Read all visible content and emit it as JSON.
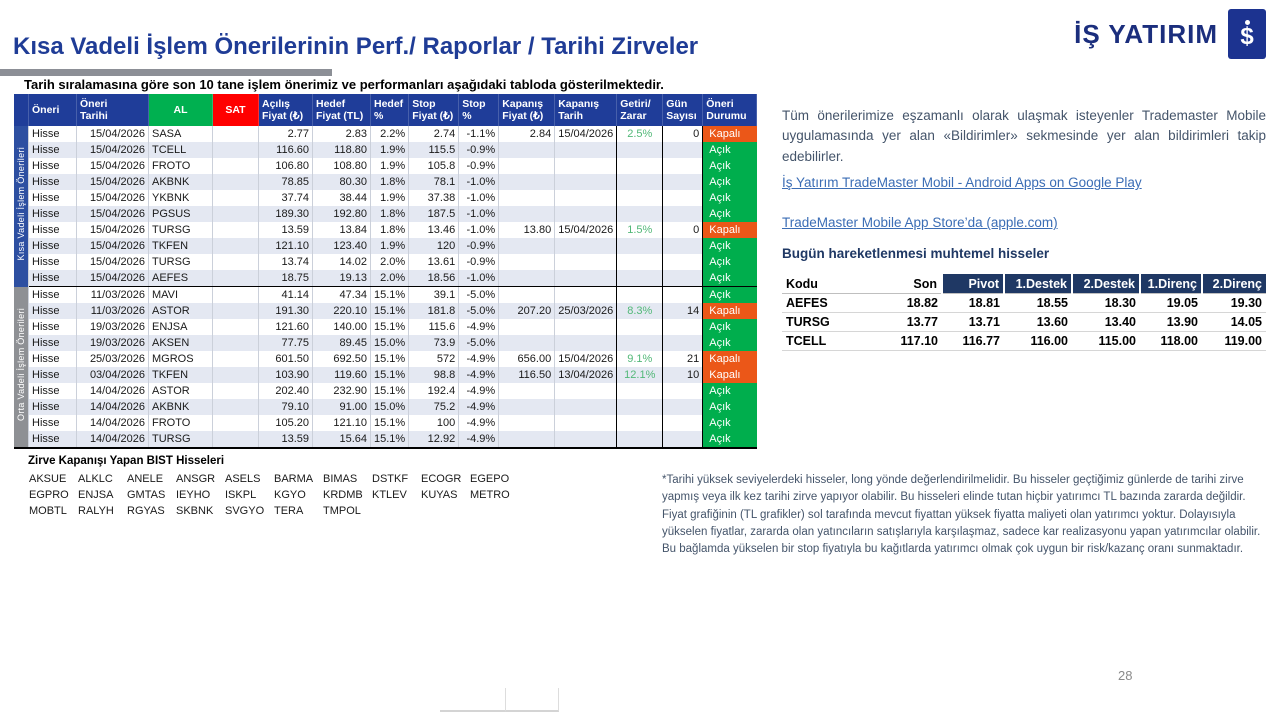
{
  "page": {
    "title": "Kısa Vadeli İşlem Önerilerinin Perf./ Raporlar / Tarihi Zirveler",
    "subtitle": "Tarih sıralamasına göre son 10 tane işlem önerimiz ve performanları aşağıdaki tabloda gösterilmektedir.",
    "page_number": "28"
  },
  "logo": {
    "brand": "İŞ YATIRIM",
    "glyph": "$"
  },
  "colors": {
    "title-blue": "#1F3C96",
    "header-blue": "#1F3D99",
    "sidebar-blue": "#2D4FA1",
    "sidebar-gray": "#8E9094",
    "al-green": "#00B050",
    "sat-red": "#FF0000",
    "open-green": "#00AE4D",
    "closed-orange": "#EB5718",
    "gain-green": "#52B878",
    "row-alt": "#E4E8F2",
    "navy": "#1F3864",
    "link-blue": "#3B6DB5",
    "body-text": "#44546A",
    "brand-navy": "#1B2E7D"
  },
  "main_table": {
    "headers": [
      {
        "l1": "Öneri",
        "l2": ""
      },
      {
        "l1": "Öneri",
        "l2": "Tarihi"
      },
      {
        "l1": "AL",
        "l2": ""
      },
      {
        "l1": "SAT",
        "l2": ""
      },
      {
        "l1": "Açılış",
        "l2": "Fiyat (₺)"
      },
      {
        "l1": "Hedef",
        "l2": "Fiyat (TL)"
      },
      {
        "l1": "Hedef",
        "l2": "%"
      },
      {
        "l1": "Stop",
        "l2": "Fiyat (₺)"
      },
      {
        "l1": "Stop",
        "l2": "%"
      },
      {
        "l1": "Kapanış",
        "l2": "Fiyat (₺)"
      },
      {
        "l1": "Kapanış",
        "l2": "Tarih"
      },
      {
        "l1": "Getiri/",
        "l2": "Zarar"
      },
      {
        "l1": "Gün",
        "l2": "Sayısı"
      },
      {
        "l1": "Öneri",
        "l2": "Durumu"
      }
    ],
    "groups": [
      {
        "label": "Kısa Vadeli İşlem Önerileri",
        "rows": [
          [
            "Hisse",
            "15/04/2026",
            "SASA",
            "",
            "2.77",
            "2.83",
            "2.2%",
            "2.74",
            "-1.1%",
            "2.84",
            "15/04/2026",
            "2.5%",
            "0",
            "Kapalı"
          ],
          [
            "Hisse",
            "15/04/2026",
            "TCELL",
            "",
            "116.60",
            "118.80",
            "1.9%",
            "115.5",
            "-0.9%",
            "",
            "",
            "",
            "",
            "Açık"
          ],
          [
            "Hisse",
            "15/04/2026",
            "FROTO",
            "",
            "106.80",
            "108.80",
            "1.9%",
            "105.8",
            "-0.9%",
            "",
            "",
            "",
            "",
            "Açık"
          ],
          [
            "Hisse",
            "15/04/2026",
            "AKBNK",
            "",
            "78.85",
            "80.30",
            "1.8%",
            "78.1",
            "-1.0%",
            "",
            "",
            "",
            "",
            "Açık"
          ],
          [
            "Hisse",
            "15/04/2026",
            "YKBNK",
            "",
            "37.74",
            "38.44",
            "1.9%",
            "37.38",
            "-1.0%",
            "",
            "",
            "",
            "",
            "Açık"
          ],
          [
            "Hisse",
            "15/04/2026",
            "PGSUS",
            "",
            "189.30",
            "192.80",
            "1.8%",
            "187.5",
            "-1.0%",
            "",
            "",
            "",
            "",
            "Açık"
          ],
          [
            "Hisse",
            "15/04/2026",
            "TURSG",
            "",
            "13.59",
            "13.84",
            "1.8%",
            "13.46",
            "-1.0%",
            "13.80",
            "15/04/2026",
            "1.5%",
            "0",
            "Kapalı"
          ],
          [
            "Hisse",
            "15/04/2026",
            "TKFEN",
            "",
            "121.10",
            "123.40",
            "1.9%",
            "120",
            "-0.9%",
            "",
            "",
            "",
            "",
            "Açık"
          ],
          [
            "Hisse",
            "15/04/2026",
            "TURSG",
            "",
            "13.74",
            "14.02",
            "2.0%",
            "13.61",
            "-0.9%",
            "",
            "",
            "",
            "",
            "Açık"
          ],
          [
            "Hisse",
            "15/04/2026",
            "AEFES",
            "",
            "18.75",
            "19.13",
            "2.0%",
            "18.56",
            "-1.0%",
            "",
            "",
            "",
            "",
            "Açık"
          ]
        ]
      },
      {
        "label": "Orta Vadeli İşlem Önerileri",
        "rows": [
          [
            "Hisse",
            "11/03/2026",
            "MAVI",
            "",
            "41.14",
            "47.34",
            "15.1%",
            "39.1",
            "-5.0%",
            "",
            "",
            "",
            "",
            "Açık"
          ],
          [
            "Hisse",
            "11/03/2026",
            "ASTOR",
            "",
            "191.30",
            "220.10",
            "15.1%",
            "181.8",
            "-5.0%",
            "207.20",
            "25/03/2026",
            "8.3%",
            "14",
            "Kapalı"
          ],
          [
            "Hisse",
            "19/03/2026",
            "ENJSA",
            "",
            "121.60",
            "140.00",
            "15.1%",
            "115.6",
            "-4.9%",
            "",
            "",
            "",
            "",
            "Açık"
          ],
          [
            "Hisse",
            "19/03/2026",
            "AKSEN",
            "",
            "77.75",
            "89.45",
            "15.0%",
            "73.9",
            "-5.0%",
            "",
            "",
            "",
            "",
            "Açık"
          ],
          [
            "Hisse",
            "25/03/2026",
            "MGROS",
            "",
            "601.50",
            "692.50",
            "15.1%",
            "572",
            "-4.9%",
            "656.00",
            "15/04/2026",
            "9.1%",
            "21",
            "Kapalı"
          ],
          [
            "Hisse",
            "03/04/2026",
            "TKFEN",
            "",
            "103.90",
            "119.60",
            "15.1%",
            "98.8",
            "-4.9%",
            "116.50",
            "13/04/2026",
            "12.1%",
            "10",
            "Kapalı"
          ],
          [
            "Hisse",
            "14/04/2026",
            "ASTOR",
            "",
            "202.40",
            "232.90",
            "15.1%",
            "192.4",
            "-4.9%",
            "",
            "",
            "",
            "",
            "Açık"
          ],
          [
            "Hisse",
            "14/04/2026",
            "AKBNK",
            "",
            "79.10",
            "91.00",
            "15.0%",
            "75.2",
            "-4.9%",
            "",
            "",
            "",
            "",
            "Açık"
          ],
          [
            "Hisse",
            "14/04/2026",
            "FROTO",
            "",
            "105.20",
            "121.10",
            "15.1%",
            "100",
            "-4.9%",
            "",
            "",
            "",
            "",
            "Açık"
          ],
          [
            "Hisse",
            "14/04/2026",
            "TURSG",
            "",
            "13.59",
            "15.64",
            "15.1%",
            "12.92",
            "-4.9%",
            "",
            "",
            "",
            "",
            "Açık"
          ]
        ]
      }
    ]
  },
  "right_panel": {
    "intro": "Tüm önerilerimize eşzamanlı olarak ulaşmak isteyenler Trademaster Mobile uygulamasında yer alan «Bildirimler» sekmesinde yer alan bildirimleri takip edebilirler.",
    "links": [
      "İş Yatırım TradeMaster Mobil - Android Apps on Google Play",
      "TradeMaster Mobile App Store’da (apple.com)"
    ],
    "movers": {
      "title": "Bugün hareketlenmesi muhtemel hisseler",
      "headers": [
        "Kodu",
        "Son",
        "Pivot",
        "1.Destek",
        "2.Destek",
        "1.Direnç",
        "2.Direnç"
      ],
      "rows": [
        [
          "AEFES",
          "18.82",
          "18.81",
          "18.55",
          "18.30",
          "19.05",
          "19.30"
        ],
        [
          "TURSG",
          "13.77",
          "13.71",
          "13.60",
          "13.40",
          "13.90",
          "14.05"
        ],
        [
          "TCELL",
          "117.10",
          "116.77",
          "116.00",
          "115.00",
          "118.00",
          "119.00"
        ]
      ]
    },
    "footnote": "*Tarihi yüksek seviyelerdeki hisseler, long yönde değerlendirilmelidir. Bu hisseler geçtiğimiz günlerde de tarihi zirve yapmış veya ilk kez tarihi zirve yapıyor olabilir. Bu hisseleri elinde tutan hiçbir yatırımcı TL bazında zararda değildir. Fiyat grafiğinin (TL grafikler) sol tarafında mevcut fiyattan yüksek fiyatta maliyeti olan yatırımcı yoktur. Dolayısıyla yükselen fiyatlar, zararda olan yatıncıların satışlarıyla karşılaşmaz, sadece kar realizasyonu yapan yatırımcılar olabilir. Bu bağlamda yükselen bir stop fiyatıyla bu kağıtlarda yatırımcı olmak çok uygun bir risk/kazanç oranı sunmaktadır."
  },
  "peaks": {
    "title": "Zirve Kapanışı Yapan BIST Hisseleri",
    "tickers": [
      "AKSUE",
      "ALKLC",
      "ANELE",
      "ANSGR",
      "ASELS",
      "BARMA",
      "BIMAS",
      "DSTKF",
      "ECOGR",
      "EGEPO",
      "EGPRO",
      "ENJSA",
      "GMTAS",
      "IEYHO",
      "ISKPL",
      "KGYO",
      "KRDMB",
      "KTLEV",
      "KUYAS",
      "METRO",
      "MOBTL",
      "RALYH",
      "RGYAS",
      "SKBNK",
      "SVGYO",
      "TERA",
      "TMPOL"
    ]
  }
}
